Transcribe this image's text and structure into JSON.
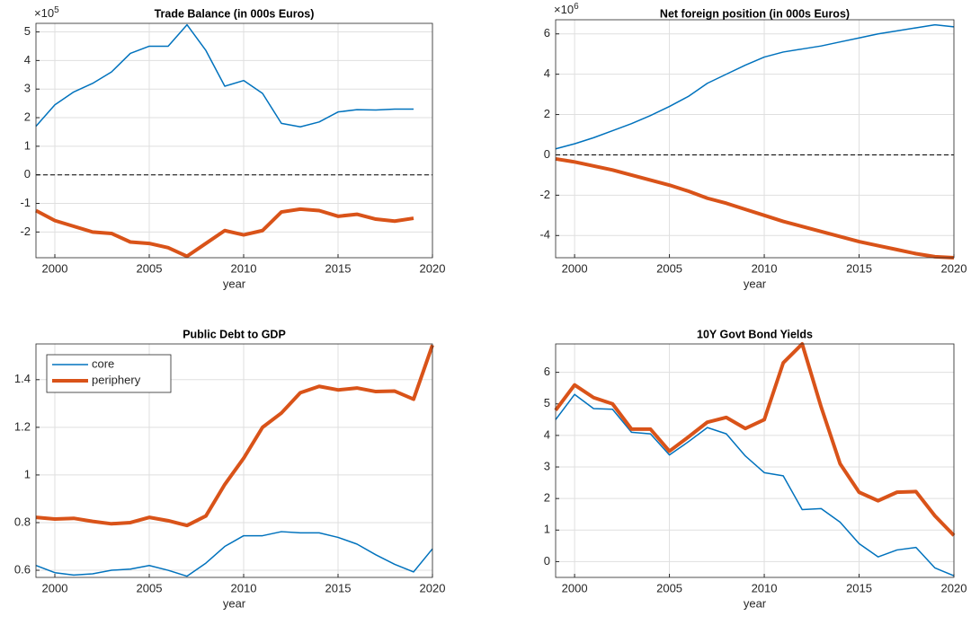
{
  "chart_data": [
    {
      "type": "line",
      "title": "Trade Balance (in 000s Euros)",
      "xlabel": "year",
      "yscale": {
        "base": "×10",
        "exponent": "5"
      },
      "x": [
        1999,
        2000,
        2001,
        2002,
        2003,
        2004,
        2005,
        2006,
        2007,
        2008,
        2009,
        2010,
        2011,
        2012,
        2013,
        2014,
        2015,
        2016,
        2017,
        2018,
        2019
      ],
      "series": [
        {
          "name": "core",
          "color": "#0072BD",
          "values": [
            1.7,
            2.45,
            2.9,
            3.2,
            3.6,
            4.25,
            4.5,
            4.5,
            5.25,
            4.35,
            3.1,
            3.3,
            2.85,
            1.8,
            1.68,
            1.85,
            2.2,
            2.28,
            2.27,
            2.3,
            2.3
          ]
        },
        {
          "name": "periphery",
          "color": "#D95319",
          "values": [
            -1.25,
            -1.6,
            -1.8,
            -2.0,
            -2.05,
            -2.35,
            -2.4,
            -2.55,
            -2.85,
            -2.4,
            -1.95,
            -2.1,
            -1.95,
            -1.3,
            -1.2,
            -1.25,
            -1.45,
            -1.38,
            -1.55,
            -1.62,
            -1.52
          ]
        }
      ],
      "xlim": [
        1999,
        2020
      ],
      "xticks": [
        2000,
        2005,
        2010,
        2015,
        2020
      ],
      "ylim": [
        -2.9,
        5.3
      ],
      "yticks": [
        -2,
        -1,
        0,
        1,
        2,
        3,
        4,
        5
      ],
      "grid": true,
      "reference_line": 0
    },
    {
      "type": "line",
      "title": "Net foreign position (in 000s Euros)",
      "xlabel": "year",
      "yscale": {
        "base": "×10",
        "exponent": "6"
      },
      "x": [
        1999,
        2000,
        2001,
        2002,
        2003,
        2004,
        2005,
        2006,
        2007,
        2008,
        2009,
        2010,
        2011,
        2012,
        2013,
        2014,
        2015,
        2016,
        2017,
        2018,
        2019,
        2020
      ],
      "series": [
        {
          "name": "core",
          "color": "#0072BD",
          "values": [
            0.3,
            0.55,
            0.85,
            1.2,
            1.55,
            1.95,
            2.4,
            2.9,
            3.55,
            4.0,
            4.45,
            4.85,
            5.1,
            5.25,
            5.4,
            5.6,
            5.8,
            6.0,
            6.15,
            6.3,
            6.45,
            6.35
          ]
        },
        {
          "name": "periphery",
          "color": "#D95319",
          "values": [
            -0.2,
            -0.35,
            -0.55,
            -0.75,
            -1.0,
            -1.25,
            -1.5,
            -1.8,
            -2.15,
            -2.4,
            -2.7,
            -3.0,
            -3.3,
            -3.55,
            -3.8,
            -4.05,
            -4.3,
            -4.5,
            -4.7,
            -4.9,
            -5.05,
            -5.1
          ]
        }
      ],
      "xlim": [
        1999,
        2020
      ],
      "xticks": [
        2000,
        2005,
        2010,
        2015,
        2020
      ],
      "ylim": [
        -5.1,
        6.7
      ],
      "yticks": [
        -4,
        -2,
        0,
        2,
        4,
        6
      ],
      "grid": true,
      "reference_line": 0
    },
    {
      "type": "line",
      "title": "Public Debt to GDP",
      "xlabel": "year",
      "x": [
        1999,
        2000,
        2001,
        2002,
        2003,
        2004,
        2005,
        2006,
        2007,
        2008,
        2009,
        2010,
        2011,
        2012,
        2013,
        2014,
        2015,
        2016,
        2017,
        2018,
        2019,
        2020
      ],
      "series": [
        {
          "name": "core",
          "color": "#0072BD",
          "values": [
            0.62,
            0.59,
            0.58,
            0.585,
            0.6,
            0.605,
            0.62,
            0.6,
            0.575,
            0.63,
            0.7,
            0.745,
            0.745,
            0.762,
            0.757,
            0.757,
            0.738,
            0.71,
            0.665,
            0.625,
            0.593,
            0.69
          ]
        },
        {
          "name": "periphery",
          "color": "#D95319",
          "values": [
            0.822,
            0.815,
            0.818,
            0.805,
            0.795,
            0.8,
            0.822,
            0.808,
            0.788,
            0.828,
            0.96,
            1.07,
            1.2,
            1.26,
            1.345,
            1.372,
            1.357,
            1.365,
            1.35,
            1.352,
            1.318,
            1.545
          ]
        }
      ],
      "xlim": [
        1999,
        2020
      ],
      "xticks": [
        2000,
        2005,
        2010,
        2015,
        2020
      ],
      "ylim": [
        0.57,
        1.55
      ],
      "yticks": [
        0.6,
        0.8,
        1,
        1.2,
        1.4
      ],
      "grid": true,
      "legend": "northwest"
    },
    {
      "type": "line",
      "title": "10Y Govt Bond Yields",
      "xlabel": "year",
      "x": [
        1999,
        2000,
        2001,
        2002,
        2003,
        2004,
        2005,
        2006,
        2007,
        2008,
        2009,
        2010,
        2011,
        2012,
        2013,
        2014,
        2015,
        2016,
        2017,
        2018,
        2019,
        2020
      ],
      "series": [
        {
          "name": "core",
          "color": "#0072BD",
          "values": [
            4.5,
            5.3,
            4.85,
            4.83,
            4.1,
            4.05,
            3.38,
            3.8,
            4.25,
            4.05,
            3.35,
            2.82,
            2.72,
            1.65,
            1.68,
            1.25,
            0.57,
            0.15,
            0.37,
            0.45,
            -0.2,
            -0.45
          ]
        },
        {
          "name": "periphery",
          "color": "#D95319",
          "values": [
            4.8,
            5.6,
            5.2,
            5.0,
            4.2,
            4.2,
            3.5,
            3.95,
            4.42,
            4.57,
            4.22,
            4.5,
            6.3,
            6.9,
            4.9,
            3.1,
            2.2,
            1.93,
            2.2,
            2.22,
            1.45,
            0.83
          ]
        }
      ],
      "xlim": [
        1999,
        2020
      ],
      "xticks": [
        2000,
        2005,
        2010,
        2015,
        2020
      ],
      "ylim": [
        -0.5,
        6.9
      ],
      "yticks": [
        0,
        1,
        2,
        3,
        4,
        5,
        6
      ],
      "grid": true
    }
  ]
}
